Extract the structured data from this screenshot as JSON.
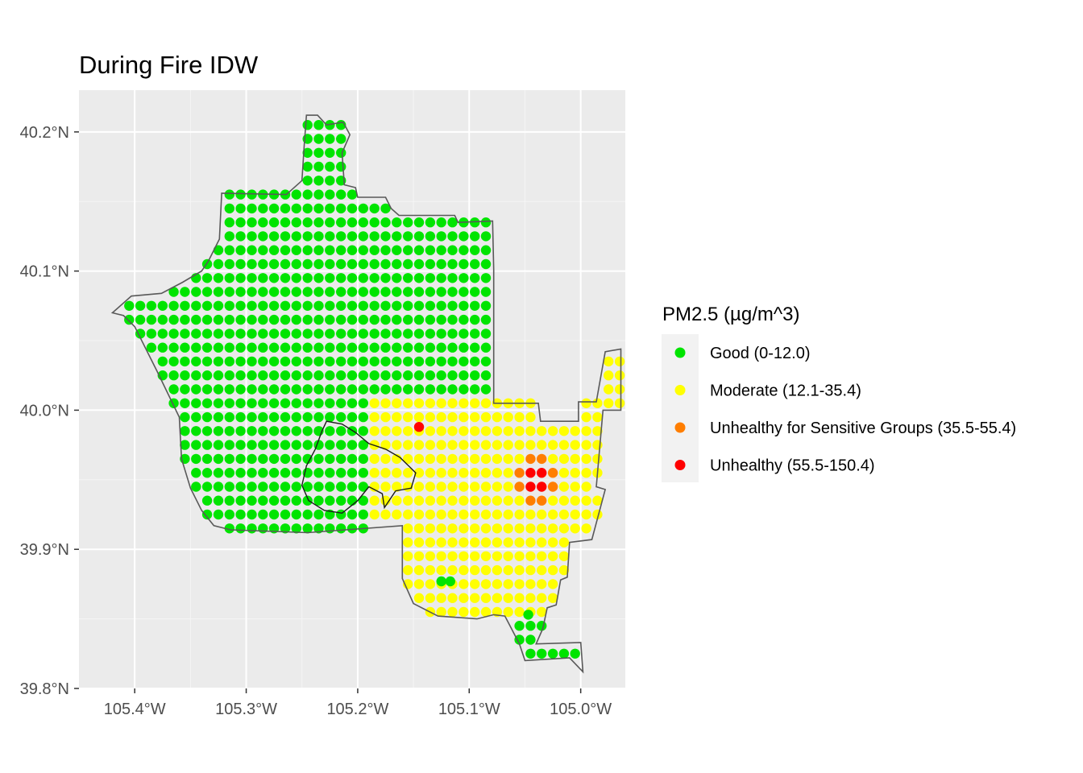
{
  "chart_data": {
    "type": "scatter",
    "title": "During Fire IDW",
    "xlabel": "",
    "ylabel": "",
    "xlim": [
      -105.45,
      -104.96
    ],
    "ylim": [
      39.8,
      40.23
    ],
    "x_ticks": [
      {
        "value": -105.4,
        "label": "105.4°W"
      },
      {
        "value": -105.3,
        "label": "105.3°W"
      },
      {
        "value": -105.2,
        "label": "105.2°W"
      },
      {
        "value": -105.1,
        "label": "105.1°W"
      },
      {
        "value": -105.0,
        "label": "105.0°W"
      }
    ],
    "y_ticks": [
      {
        "value": 39.8,
        "label": "39.8°N"
      },
      {
        "value": 39.9,
        "label": "39.9°N"
      },
      {
        "value": 40.0,
        "label": "40.0°N"
      },
      {
        "value": 40.1,
        "label": "40.1°N"
      },
      {
        "value": 40.2,
        "label": "40.2°N"
      }
    ],
    "grid": true,
    "grid_step": 0.01,
    "legend": {
      "title": "PM2.5 (µg/m^3)",
      "position": "right",
      "items": [
        {
          "label": "Good (0-12.0)",
          "color": "#00e400"
        },
        {
          "label": "Moderate (12.1-35.4)",
          "color": "#ffff00"
        },
        {
          "label": "Unhealthy for Sensitive Groups (35.5-55.4)",
          "color": "#ff7e00"
        },
        {
          "label": "Unhealthy (55.5-150.4)",
          "color": "#ff0000"
        }
      ]
    },
    "colors": {
      "good": "#00e400",
      "moderate": "#ffff00",
      "usg": "#ff7e00",
      "unhealthy": "#ff0000"
    },
    "boundary": [
      [
        -105.246,
        40.212
      ],
      [
        -105.236,
        40.212
      ],
      [
        -105.228,
        40.205
      ],
      [
        -105.213,
        40.207
      ],
      [
        -105.207,
        40.198
      ],
      [
        -105.214,
        40.185
      ],
      [
        -105.212,
        40.162
      ],
      [
        -105.202,
        40.16
      ],
      [
        -105.2,
        40.153
      ],
      [
        -105.175,
        40.153
      ],
      [
        -105.17,
        40.145
      ],
      [
        -105.163,
        40.14
      ],
      [
        -105.113,
        40.14
      ],
      [
        -105.11,
        40.135
      ],
      [
        -105.079,
        40.136
      ],
      [
        -105.078,
        40.101
      ],
      [
        -105.078,
        40.047
      ],
      [
        -105.078,
        40.005
      ],
      [
        -105.038,
        40.005
      ],
      [
        -105.036,
        39.992
      ],
      [
        -105.002,
        39.992
      ],
      [
        -105.002,
        40.006
      ],
      [
        -104.986,
        40.006
      ],
      [
        -104.978,
        40.042
      ],
      [
        -104.964,
        40.044
      ],
      [
        -104.964,
        40.0
      ],
      [
        -104.98,
        40.0
      ],
      [
        -104.986,
        39.945
      ],
      [
        -104.978,
        39.943
      ],
      [
        -104.99,
        39.907
      ],
      [
        -105.01,
        39.905
      ],
      [
        -105.012,
        39.88
      ],
      [
        -105.018,
        39.878
      ],
      [
        -105.022,
        39.86
      ],
      [
        -105.03,
        39.858
      ],
      [
        -105.034,
        39.843
      ],
      [
        -105.04,
        39.832
      ],
      [
        -105.0,
        39.833
      ],
      [
        -104.998,
        39.812
      ],
      [
        -105.01,
        39.822
      ],
      [
        -105.05,
        39.82
      ],
      [
        -105.055,
        39.832
      ],
      [
        -105.068,
        39.852
      ],
      [
        -105.078,
        39.853
      ],
      [
        -105.093,
        39.85
      ],
      [
        -105.128,
        39.852
      ],
      [
        -105.15,
        39.861
      ],
      [
        -105.16,
        39.879
      ],
      [
        -105.16,
        39.917
      ],
      [
        -105.245,
        39.912
      ],
      [
        -105.314,
        39.914
      ],
      [
        -105.329,
        39.917
      ],
      [
        -105.34,
        39.928
      ],
      [
        -105.35,
        39.944
      ],
      [
        -105.358,
        39.965
      ],
      [
        -105.36,
        39.995
      ],
      [
        -105.38,
        40.028
      ],
      [
        -105.4,
        40.06
      ],
      [
        -105.41,
        40.068
      ],
      [
        -105.42,
        40.07
      ],
      [
        -105.403,
        40.082
      ],
      [
        -105.376,
        40.084
      ],
      [
        -105.357,
        40.092
      ],
      [
        -105.34,
        40.1
      ],
      [
        -105.334,
        40.107
      ],
      [
        -105.324,
        40.123
      ],
      [
        -105.322,
        40.156
      ],
      [
        -105.264,
        40.155
      ],
      [
        -105.25,
        40.165
      ],
      [
        -105.248,
        40.19
      ],
      [
        -105.246,
        40.212
      ]
    ],
    "fire_perimeter": [
      [
        -105.228,
        39.992
      ],
      [
        -105.214,
        39.99
      ],
      [
        -105.202,
        39.984
      ],
      [
        -105.19,
        39.976
      ],
      [
        -105.175,
        39.972
      ],
      [
        -105.162,
        39.966
      ],
      [
        -105.148,
        39.955
      ],
      [
        -105.152,
        39.944
      ],
      [
        -105.166,
        39.942
      ],
      [
        -105.176,
        39.93
      ],
      [
        -105.178,
        39.94
      ],
      [
        -105.19,
        39.945
      ],
      [
        -105.2,
        39.935
      ],
      [
        -105.214,
        39.926
      ],
      [
        -105.23,
        39.928
      ],
      [
        -105.244,
        39.935
      ],
      [
        -105.25,
        39.946
      ],
      [
        -105.246,
        39.96
      ],
      [
        -105.238,
        39.972
      ],
      [
        -105.232,
        39.985
      ],
      [
        -105.228,
        39.992
      ]
    ],
    "anomalies": [
      {
        "lon": -105.145,
        "lat": 39.988,
        "category": "unhealthy"
      },
      {
        "lon": -105.125,
        "lat": 39.877,
        "category": "good"
      },
      {
        "lon": -105.117,
        "lat": 39.877,
        "category": "good"
      },
      {
        "lon": -105.047,
        "lat": 39.853,
        "category": "good"
      }
    ],
    "hotspot": {
      "lon": -105.04,
      "lat": 39.952
    }
  }
}
